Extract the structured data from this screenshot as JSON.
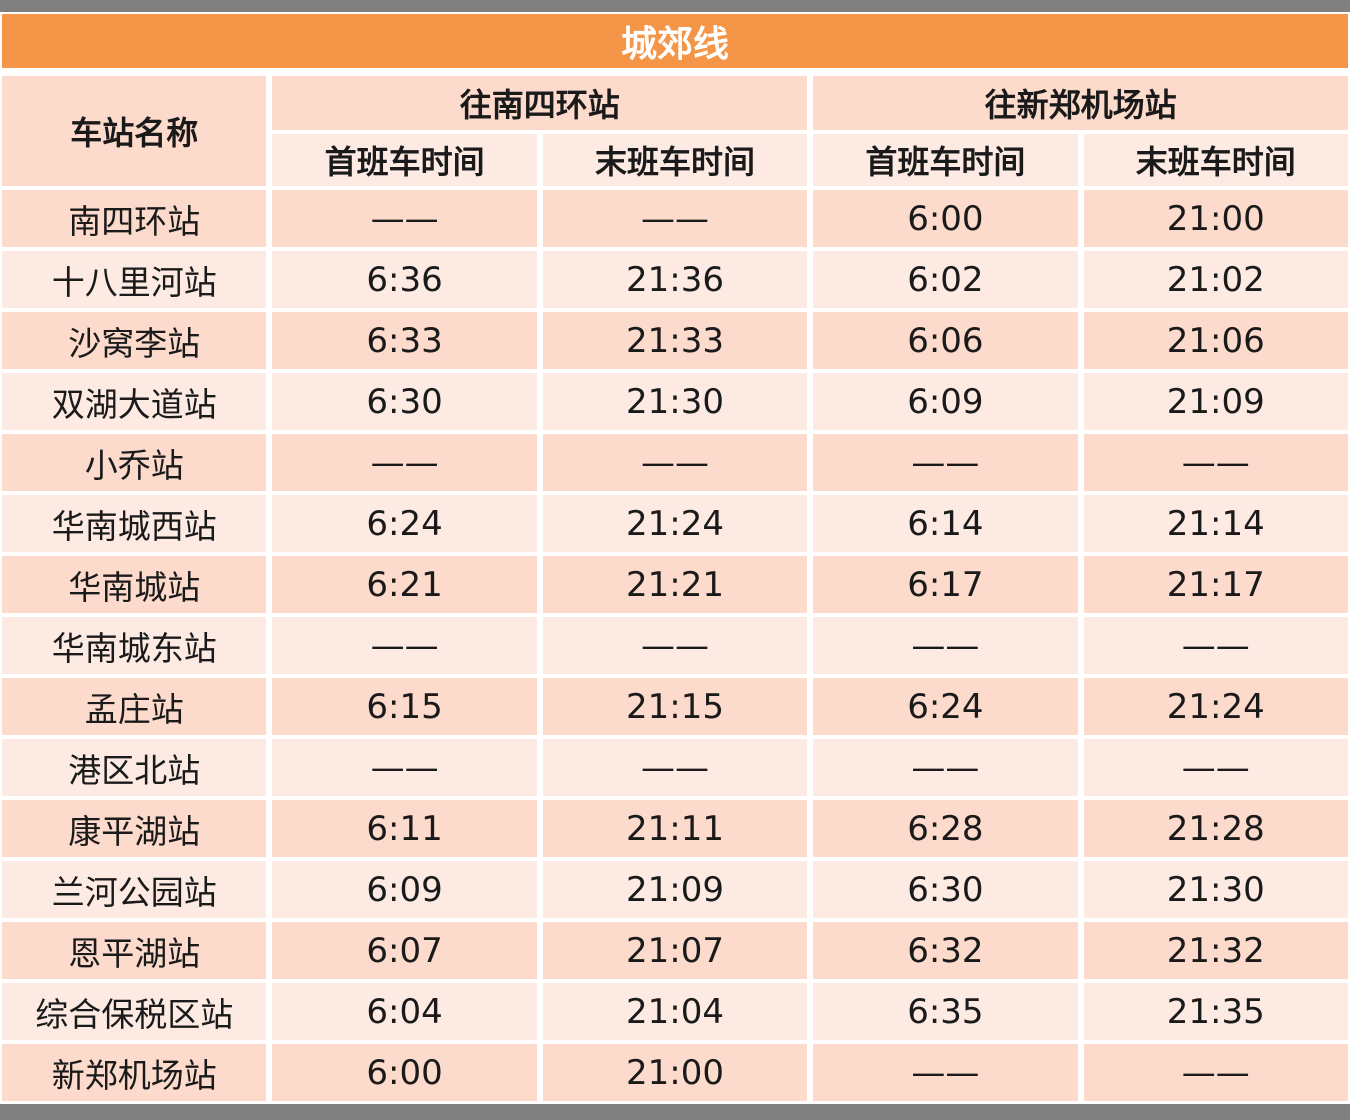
{
  "theme": {
    "gray": "#808080",
    "orange": "#F49548",
    "dark": "#FCDACC",
    "light": "#FCEAE3",
    "text": "#1A1A1A"
  },
  "chart_data": {
    "type": "table",
    "title": "城郊线",
    "station_col_header": "车站名称",
    "direction_groups": [
      {
        "label": "往南四环站",
        "sub_headers": [
          "首班车时间",
          "末班车时间"
        ]
      },
      {
        "label": "往新郑机场站",
        "sub_headers": [
          "首班车时间",
          "末班车时间"
        ]
      }
    ],
    "no_service_mark": "——",
    "rows": [
      {
        "station": "南四环站",
        "times": [
          "——",
          "——",
          "6:00",
          "21:00"
        ]
      },
      {
        "station": "十八里河站",
        "times": [
          "6:36",
          "21:36",
          "6:02",
          "21:02"
        ]
      },
      {
        "station": "沙窝李站",
        "times": [
          "6:33",
          "21:33",
          "6:06",
          "21:06"
        ]
      },
      {
        "station": "双湖大道站",
        "times": [
          "6:30",
          "21:30",
          "6:09",
          "21:09"
        ]
      },
      {
        "station": "小乔站",
        "times": [
          "——",
          "——",
          "——",
          "——"
        ]
      },
      {
        "station": "华南城西站",
        "times": [
          "6:24",
          "21:24",
          "6:14",
          "21:14"
        ]
      },
      {
        "station": "华南城站",
        "times": [
          "6:21",
          "21:21",
          "6:17",
          "21:17"
        ]
      },
      {
        "station": "华南城东站",
        "times": [
          "——",
          "——",
          "——",
          "——"
        ]
      },
      {
        "station": "孟庄站",
        "times": [
          "6:15",
          "21:15",
          "6:24",
          "21:24"
        ]
      },
      {
        "station": "港区北站",
        "times": [
          "——",
          "——",
          "——",
          "——"
        ]
      },
      {
        "station": "康平湖站",
        "times": [
          "6:11",
          "21:11",
          "6:28",
          "21:28"
        ]
      },
      {
        "station": "兰河公园站",
        "times": [
          "6:09",
          "21:09",
          "6:30",
          "21:30"
        ]
      },
      {
        "station": "恩平湖站",
        "times": [
          "6:07",
          "21:07",
          "6:32",
          "21:32"
        ]
      },
      {
        "station": "综合保税区站",
        "times": [
          "6:04",
          "21:04",
          "6:35",
          "21:35"
        ]
      },
      {
        "station": "新郑机场站",
        "times": [
          "6:00",
          "21:00",
          "——",
          "——"
        ]
      }
    ]
  }
}
